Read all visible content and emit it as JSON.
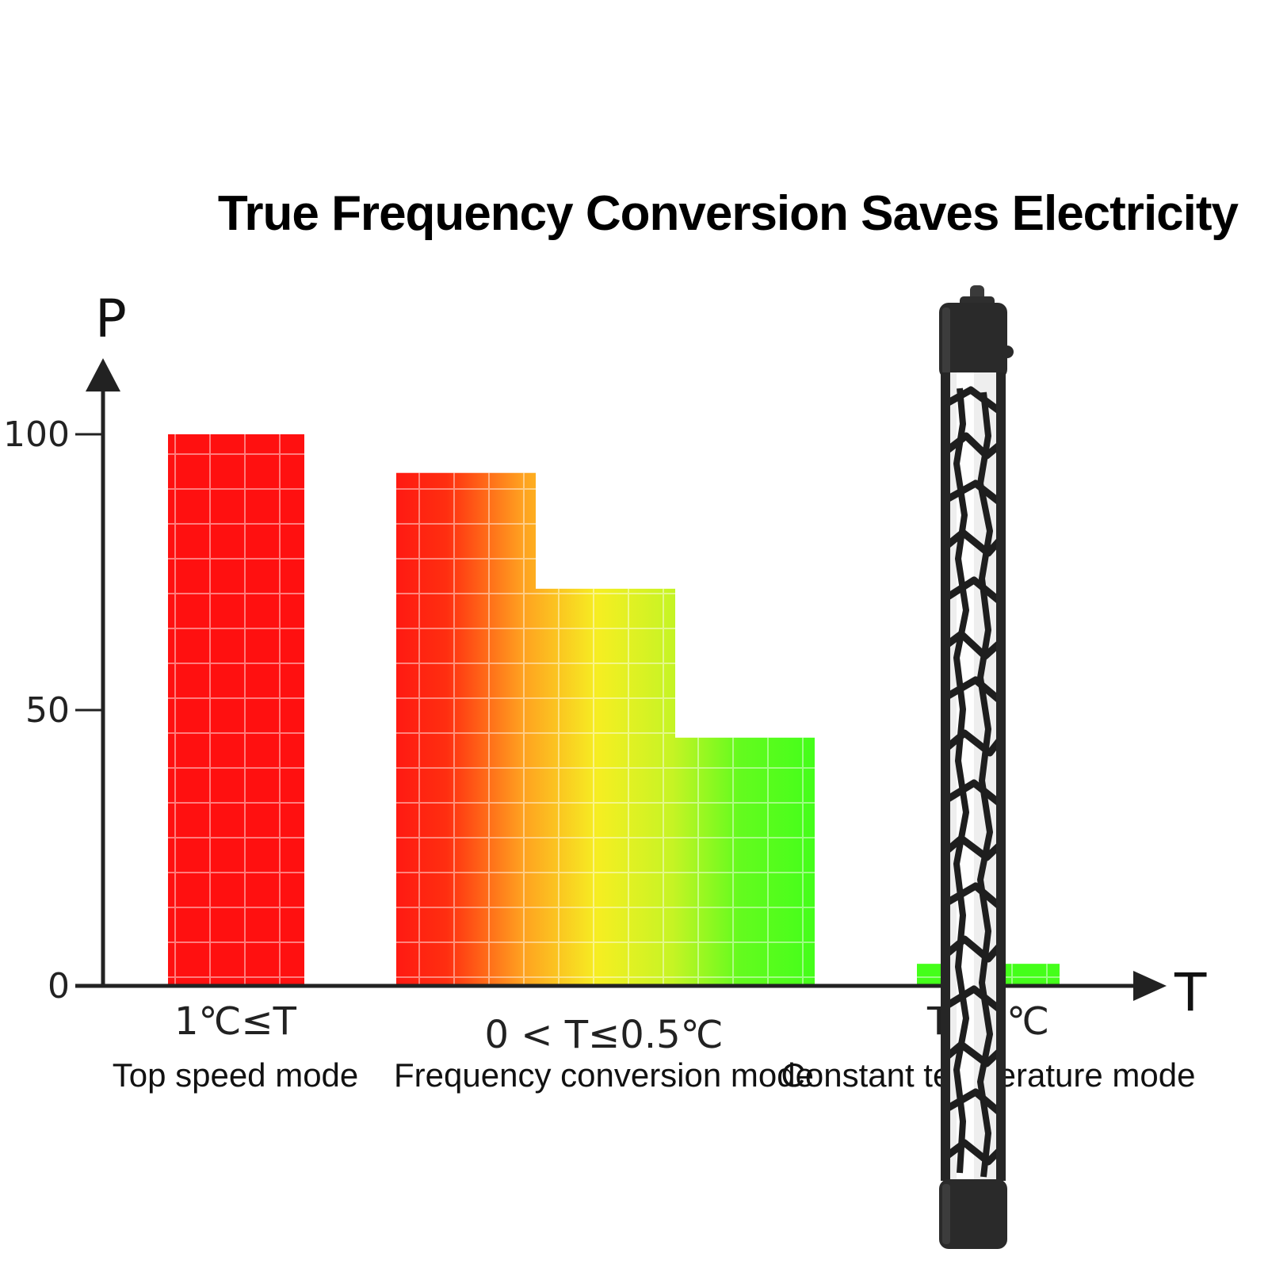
{
  "chart_data": {
    "type": "bar",
    "title": "True Frequency Conversion Saves Electricity",
    "ylabel": "P",
    "xlabel": "T",
    "ylim": [
      0,
      100
    ],
    "yticks": [
      "0",
      "50",
      "100"
    ],
    "grid": false,
    "legend": "none",
    "groups": [
      {
        "condition": "1℃≤T",
        "mode": "Top speed mode",
        "values": [
          100
        ],
        "colors": [
          "#ff1010"
        ]
      },
      {
        "condition": "0 < T≤0.5℃",
        "mode": "Frequency conversion mode",
        "values": [
          93,
          72,
          45
        ],
        "colors": [
          "#ff2a10",
          "#c8f520",
          "#44ff1a"
        ]
      },
      {
        "condition": "T≤0℃",
        "mode": "Constant temperature mode",
        "values": [
          4
        ],
        "colors": [
          "#44ff1a"
        ]
      }
    ]
  },
  "product_image": "aquarium-heater-rod-icon"
}
